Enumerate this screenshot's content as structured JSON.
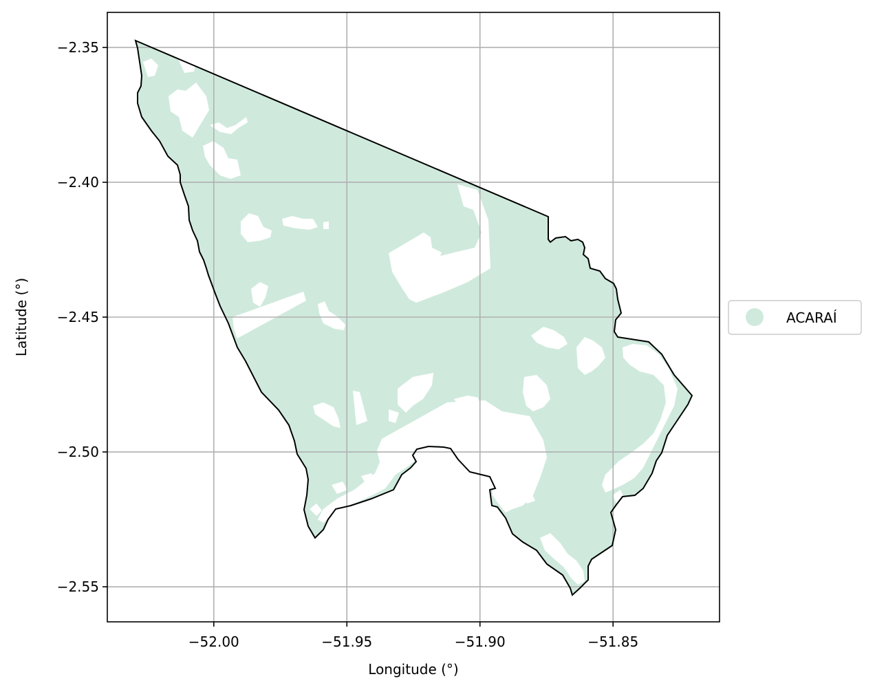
{
  "chart_data": {
    "type": "map",
    "title": "",
    "xlabel": "Longitude (°)",
    "ylabel": "Latitude (°)",
    "xlim": [
      -52.04,
      -51.81
    ],
    "ylim": [
      -2.563,
      -2.337
    ],
    "x_ticks": [
      {
        "value": -52.0,
        "label": "−52.00"
      },
      {
        "value": -51.95,
        "label": "−51.95"
      },
      {
        "value": -51.9,
        "label": "−51.90"
      },
      {
        "value": -51.85,
        "label": "−51.85"
      }
    ],
    "y_ticks": [
      {
        "value": -2.35,
        "label": "−2.35"
      },
      {
        "value": -2.4,
        "label": "−2.40"
      },
      {
        "value": -2.45,
        "label": "−2.45"
      },
      {
        "value": -2.5,
        "label": "−2.50"
      },
      {
        "value": -2.55,
        "label": "−2.55"
      }
    ],
    "grid": true,
    "legend": {
      "placement": "center-right-outside",
      "entries": [
        {
          "name": "ACARAÍ",
          "color": "#cfeadd"
        }
      ]
    },
    "colors": {
      "fill": "#cfeadd",
      "boundary": "#000000",
      "grid": "#b0b0b0",
      "holes": "#ffffff"
    }
  }
}
